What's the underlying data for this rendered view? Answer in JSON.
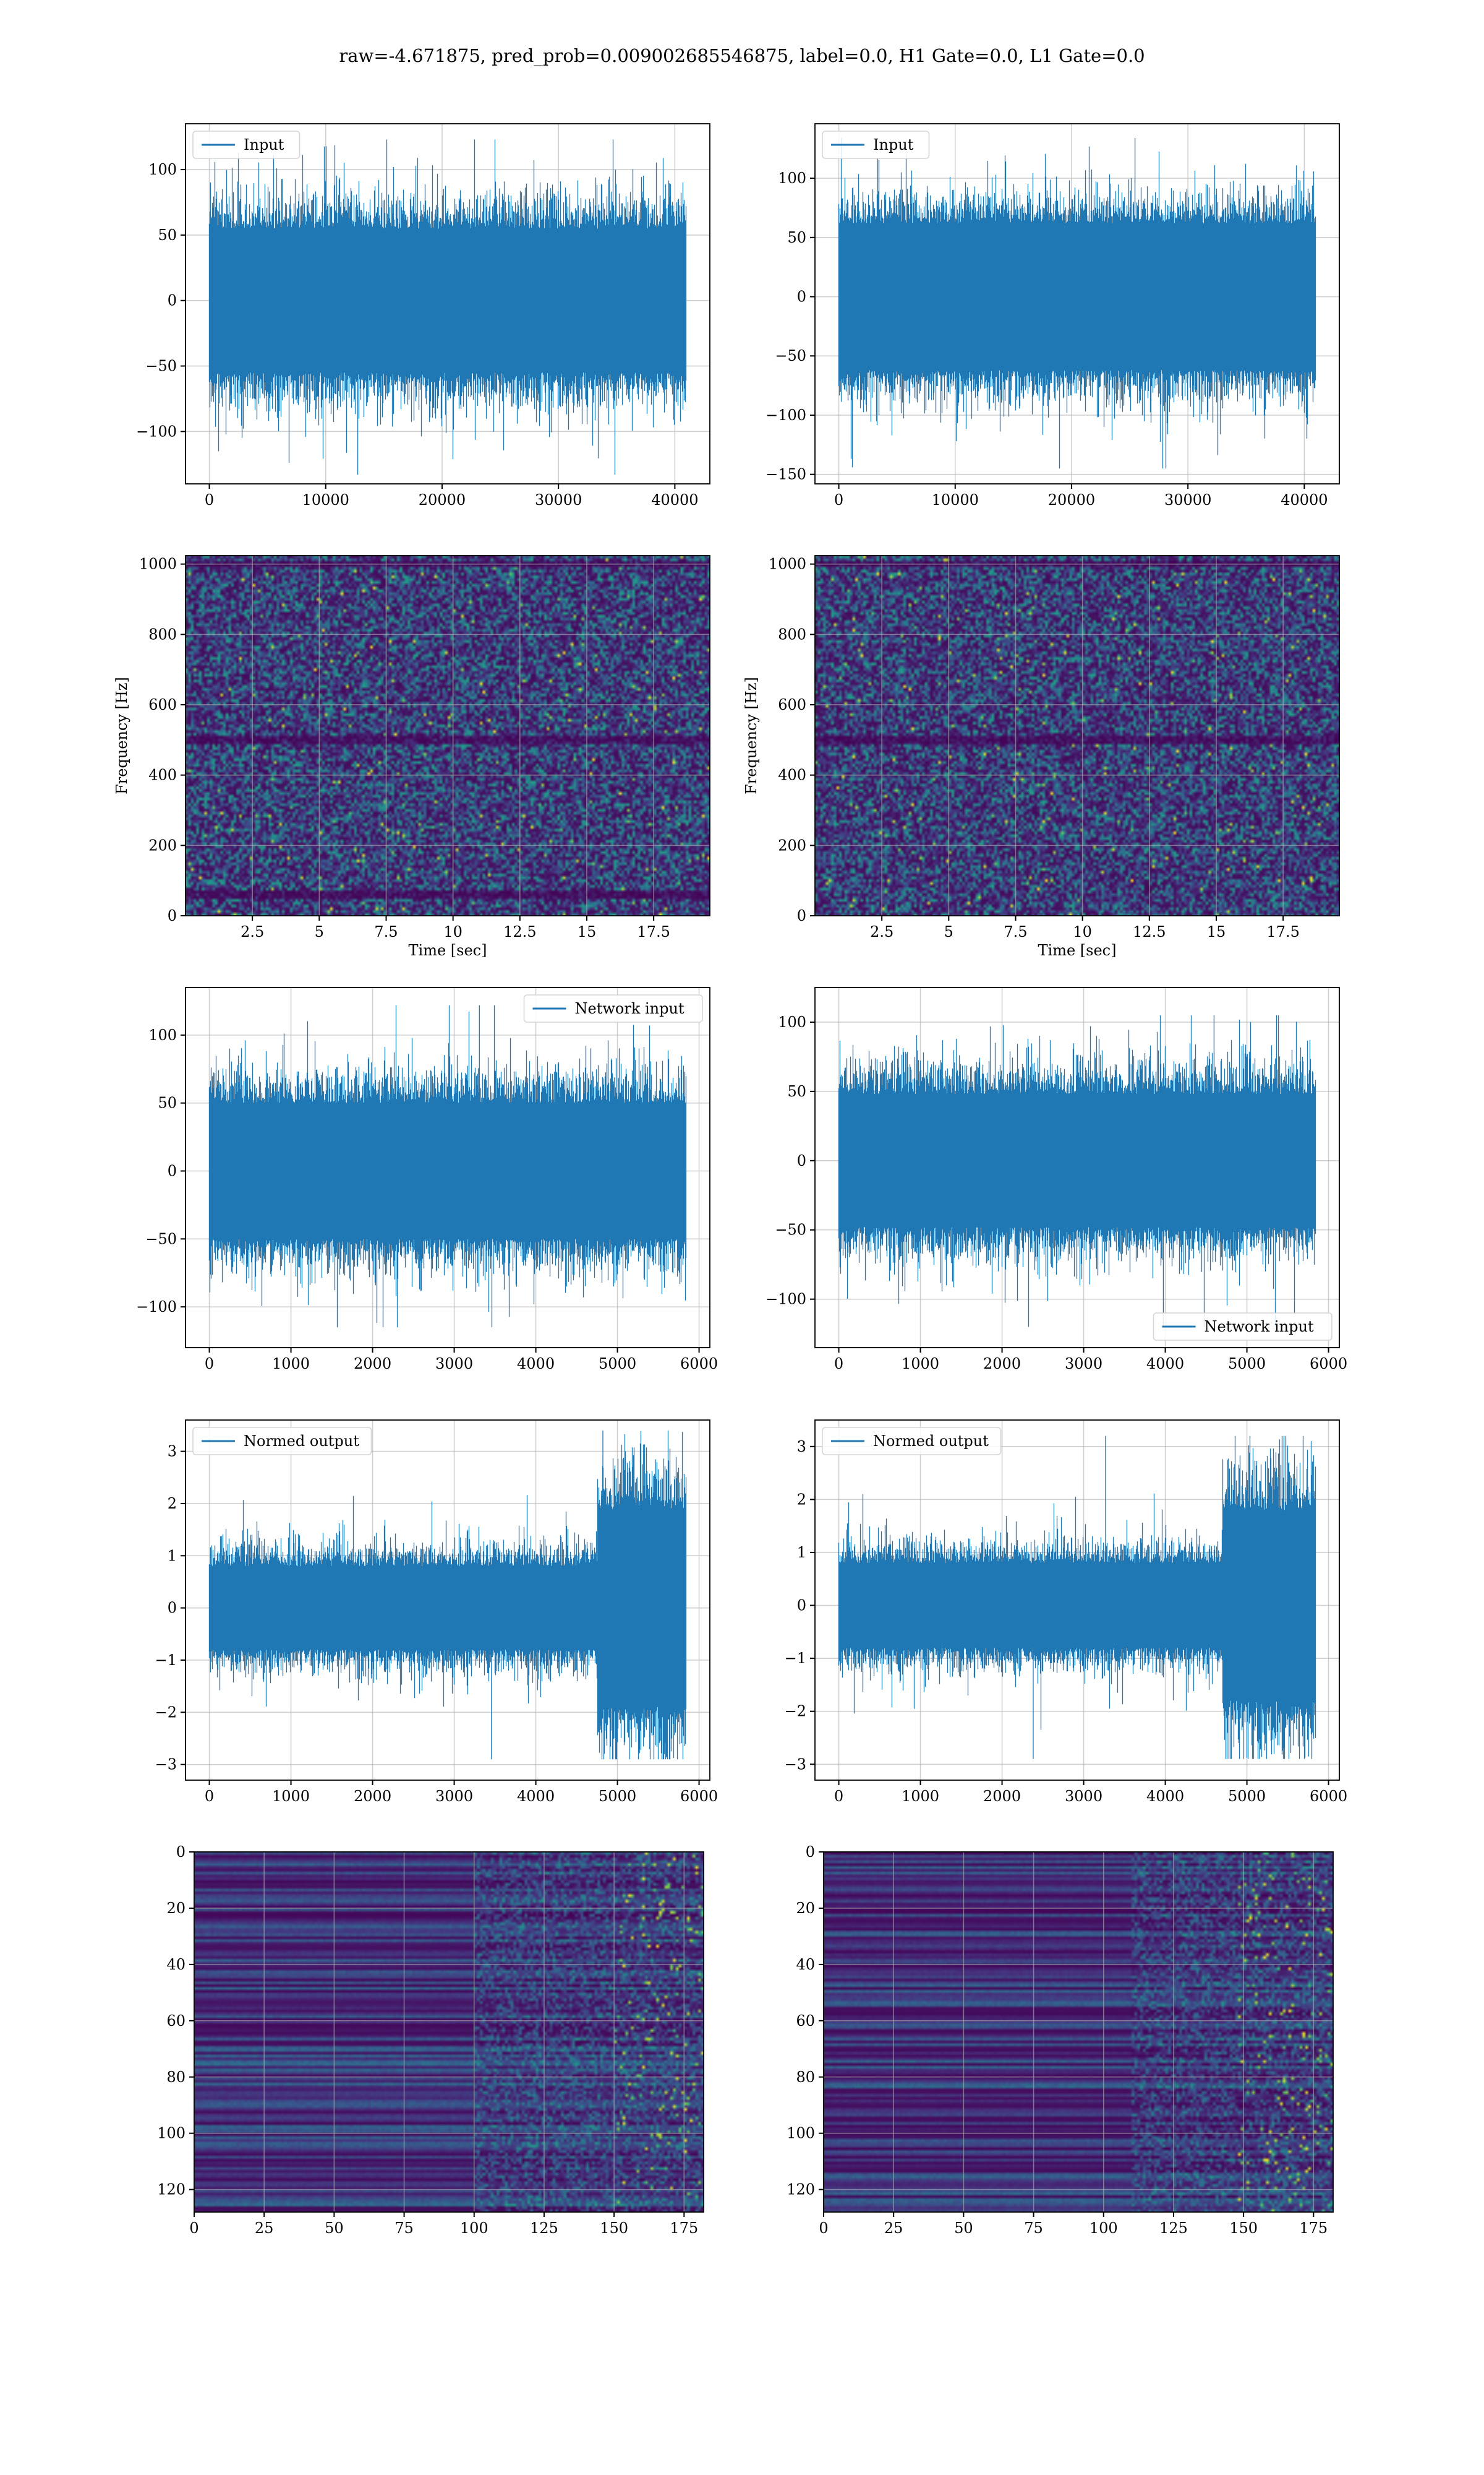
{
  "figure": {
    "suptitle": "raw=-4.671875, pred_prob=0.009002685546875, label=0.0, H1 Gate=0.0, L1 Gate=0.0"
  },
  "colors": {
    "line": "#1f77b4",
    "grid": "#b0b0b0",
    "viridis": [
      "#440154",
      "#46327e",
      "#365c8d",
      "#277f8e",
      "#1fa187",
      "#4ac16d",
      "#a0da39",
      "#fde725"
    ]
  },
  "chart_data": [
    {
      "id": "input-h1",
      "type": "line",
      "legend": [
        "Input"
      ],
      "legend_loc": "upper left",
      "x_range": [
        0,
        40960
      ],
      "xlim": [
        -2048,
        43008
      ],
      "ylim": [
        -140,
        135
      ],
      "xticks": [
        0,
        10000,
        20000,
        30000,
        40000
      ],
      "yticks": [
        -100,
        -50,
        0,
        50,
        100
      ],
      "envelope": {
        "base": 55,
        "noise": 30,
        "spike_max": 123,
        "spike_min": -133
      }
    },
    {
      "id": "input-l1",
      "type": "line",
      "legend": [
        "Input"
      ],
      "legend_loc": "upper left",
      "x_range": [
        0,
        40960
      ],
      "xlim": [
        -2048,
        43008
      ],
      "ylim": [
        -158,
        146
      ],
      "xticks": [
        0,
        10000,
        20000,
        30000,
        40000
      ],
      "yticks": [
        -150,
        -100,
        -50,
        0,
        50,
        100
      ],
      "envelope": {
        "base": 62,
        "noise": 30,
        "spike_max": 134,
        "spike_min": -145
      }
    },
    {
      "id": "spectrogram-h1",
      "type": "heatmap",
      "xlabel": "Time [sec]",
      "ylabel": "Frequency [Hz]",
      "xlim": [
        0,
        19.6
      ],
      "ylim": [
        0,
        1024
      ],
      "xticks": [
        2.5,
        5.0,
        7.5,
        10.0,
        12.5,
        15.0,
        17.5
      ],
      "yticks": [
        0,
        200,
        400,
        600,
        800,
        1000
      ],
      "dark_bands_hz": [
        60,
        500,
        1000
      ]
    },
    {
      "id": "spectrogram-l1",
      "type": "heatmap",
      "xlabel": "Time [sec]",
      "ylabel": "Frequency [Hz]",
      "xlim": [
        0,
        19.6
      ],
      "ylim": [
        0,
        1024
      ],
      "xticks": [
        2.5,
        5.0,
        7.5,
        10.0,
        12.5,
        15.0,
        17.5
      ],
      "yticks": [
        0,
        200,
        400,
        600,
        800,
        1000
      ],
      "dark_bands_hz": [
        500,
        1000
      ]
    },
    {
      "id": "network-input-h1",
      "type": "line",
      "legend": [
        "Network input"
      ],
      "legend_loc": "upper right",
      "x_range": [
        0,
        5839
      ],
      "xlim": [
        -292,
        6132
      ],
      "ylim": [
        -130,
        135
      ],
      "xticks": [
        0,
        1000,
        2000,
        3000,
        4000,
        5000,
        6000
      ],
      "yticks": [
        -100,
        -50,
        0,
        50,
        100
      ],
      "envelope": {
        "base": 50,
        "noise": 28,
        "spike_max": 122,
        "spike_min": -115
      }
    },
    {
      "id": "network-input-l1",
      "type": "line",
      "legend": [
        "Network input"
      ],
      "legend_loc": "lower right",
      "x_range": [
        0,
        5839
      ],
      "xlim": [
        -292,
        6132
      ],
      "ylim": [
        -135,
        125
      ],
      "xticks": [
        0,
        1000,
        2000,
        3000,
        4000,
        5000,
        6000
      ],
      "yticks": [
        -100,
        -50,
        0,
        50,
        100
      ],
      "envelope": {
        "base": 48,
        "noise": 28,
        "spike_max": 105,
        "spike_min": -120
      }
    },
    {
      "id": "normed-output-h1",
      "type": "line",
      "legend": [
        "Normed output"
      ],
      "legend_loc": "upper left",
      "x_range": [
        0,
        5839
      ],
      "xlim": [
        -292,
        6132
      ],
      "ylim": [
        -3.3,
        3.6
      ],
      "xticks": [
        0,
        1000,
        2000,
        3000,
        4000,
        5000,
        6000
      ],
      "yticks": [
        -3,
        -2,
        -1,
        0,
        1,
        2,
        3
      ],
      "envelope": {
        "base": 0.8,
        "noise": 0.5,
        "change_x": 4750,
        "late_base": 1.9,
        "late_noise": 1.1,
        "spike_max": 3.4,
        "spike_min": -2.9
      }
    },
    {
      "id": "normed-output-l1",
      "type": "line",
      "legend": [
        "Normed output"
      ],
      "legend_loc": "upper left",
      "x_range": [
        0,
        5839
      ],
      "xlim": [
        -292,
        6132
      ],
      "ylim": [
        -3.3,
        3.5
      ],
      "xticks": [
        0,
        1000,
        2000,
        3000,
        4000,
        5000,
        6000
      ],
      "yticks": [
        -3,
        -2,
        -1,
        0,
        1,
        2,
        3
      ],
      "envelope": {
        "base": 0.8,
        "noise": 0.5,
        "change_x": 4700,
        "late_base": 1.8,
        "late_noise": 1.1,
        "spike_max": 3.2,
        "spike_min": -2.9
      }
    },
    {
      "id": "feature-map-h1",
      "type": "heatmap",
      "xlim": [
        0,
        182
      ],
      "ylim": [
        128,
        0
      ],
      "xticks": [
        0,
        25,
        50,
        75,
        100,
        125,
        150,
        175
      ],
      "yticks": [
        0,
        20,
        40,
        60,
        80,
        100,
        120
      ],
      "change_col": 100,
      "bright_col": 150
    },
    {
      "id": "feature-map-l1",
      "type": "heatmap",
      "xlim": [
        0,
        182
      ],
      "ylim": [
        128,
        0
      ],
      "xticks": [
        0,
        25,
        50,
        75,
        100,
        125,
        150,
        175
      ],
      "yticks": [
        0,
        20,
        40,
        60,
        80,
        100,
        120
      ],
      "change_col": 110,
      "bright_col": 148
    }
  ]
}
